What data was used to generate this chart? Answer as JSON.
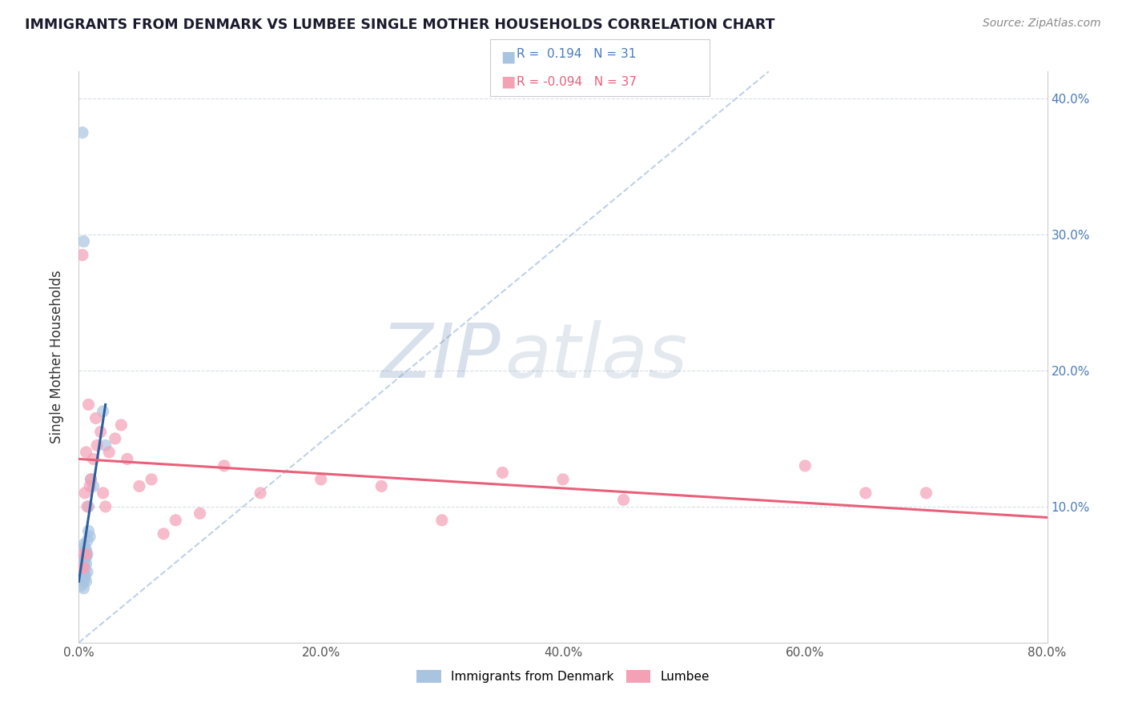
{
  "title": "IMMIGRANTS FROM DENMARK VS LUMBEE SINGLE MOTHER HOUSEHOLDS CORRELATION CHART",
  "source_text": "Source: ZipAtlas.com",
  "ylabel": "Single Mother Households",
  "xlim": [
    0.0,
    0.8
  ],
  "ylim": [
    0.0,
    0.42
  ],
  "yticks": [
    0.1,
    0.2,
    0.3,
    0.4
  ],
  "ytick_labels": [
    "10.0%",
    "20.0%",
    "30.0%",
    "40.0%"
  ],
  "xticks": [
    0.0,
    0.2,
    0.4,
    0.6,
    0.8
  ],
  "xtick_labels": [
    "0.0%",
    "20.0%",
    "40.0%",
    "60.0%",
    "80.0%"
  ],
  "blue_R": 0.194,
  "blue_N": 31,
  "pink_R": -0.094,
  "pink_N": 37,
  "blue_color": "#a8c4e0",
  "pink_color": "#f4a0b5",
  "blue_line_color": "#2c5f9e",
  "pink_line_color": "#e8607a",
  "diag_line_color": "#b8cce4",
  "watermark_color": "#c8d8ea",
  "legend_blue_text_color": "#4a7abf",
  "legend_pink_text_color": "#e8607a",
  "right_tick_color": "#4a7abf",
  "title_color": "#1a1a2e",
  "source_color": "#888888",
  "grid_color": "#d8dde8",
  "spine_color": "#cccccc",
  "blue_scatter_x": [
    0.003,
    0.004,
    0.005,
    0.006,
    0.007,
    0.003,
    0.004,
    0.005,
    0.003,
    0.004,
    0.005,
    0.006,
    0.006,
    0.007,
    0.008,
    0.003,
    0.004,
    0.005,
    0.006,
    0.007,
    0.008,
    0.009,
    0.01,
    0.012,
    0.02,
    0.022,
    0.005,
    0.006,
    0.003,
    0.004,
    0.002
  ],
  "blue_scatter_y": [
    0.375,
    0.295,
    0.062,
    0.058,
    0.065,
    0.06,
    0.072,
    0.055,
    0.048,
    0.045,
    0.05,
    0.068,
    0.063,
    0.075,
    0.082,
    0.055,
    0.058,
    0.07,
    0.065,
    0.052,
    0.1,
    0.078,
    0.12,
    0.115,
    0.17,
    0.145,
    0.048,
    0.045,
    0.052,
    0.04,
    0.042
  ],
  "pink_scatter_x": [
    0.003,
    0.004,
    0.005,
    0.006,
    0.007,
    0.008,
    0.009,
    0.01,
    0.012,
    0.014,
    0.015,
    0.018,
    0.02,
    0.022,
    0.025,
    0.03,
    0.035,
    0.04,
    0.05,
    0.06,
    0.07,
    0.08,
    0.1,
    0.12,
    0.15,
    0.2,
    0.25,
    0.3,
    0.35,
    0.4,
    0.45,
    0.6,
    0.65,
    0.7,
    0.003,
    0.004,
    0.006
  ],
  "pink_scatter_y": [
    0.055,
    0.065,
    0.11,
    0.14,
    0.1,
    0.175,
    0.115,
    0.12,
    0.135,
    0.165,
    0.145,
    0.155,
    0.11,
    0.1,
    0.14,
    0.15,
    0.16,
    0.135,
    0.115,
    0.12,
    0.08,
    0.09,
    0.095,
    0.13,
    0.11,
    0.12,
    0.115,
    0.09,
    0.125,
    0.12,
    0.105,
    0.13,
    0.11,
    0.11,
    0.285,
    0.055,
    0.065
  ],
  "blue_line_x": [
    0.0,
    0.022
  ],
  "blue_line_y": [
    0.045,
    0.175
  ],
  "pink_line_x": [
    0.0,
    0.8
  ],
  "pink_line_y": [
    0.135,
    0.092
  ],
  "diag_line_x": [
    0.0,
    0.57
  ],
  "diag_line_y": [
    0.0,
    0.42
  ]
}
